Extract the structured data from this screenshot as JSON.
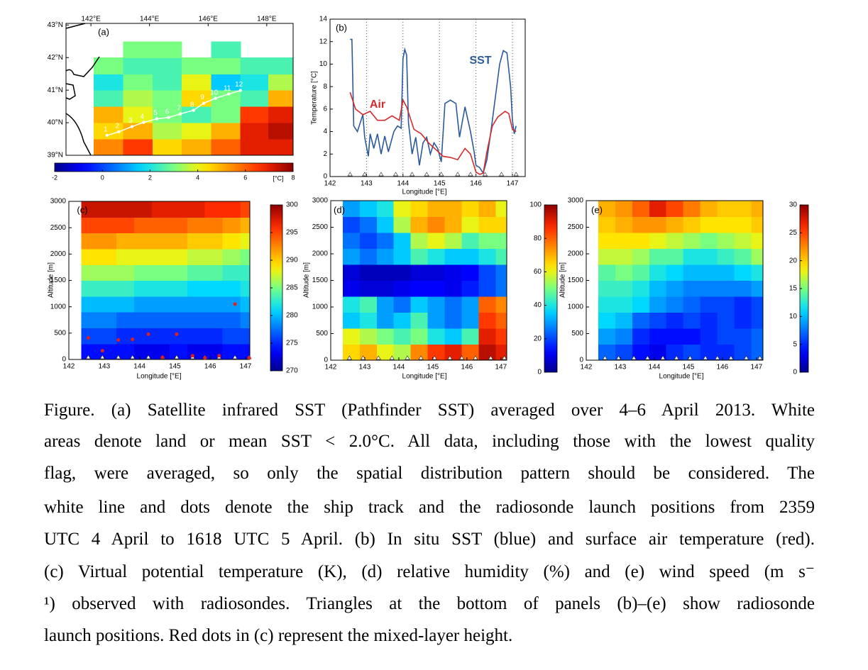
{
  "launch_longitudes": [
    142.55,
    142.95,
    143.4,
    143.8,
    144.25,
    144.65,
    145.05,
    145.5,
    145.85,
    146.25,
    146.7,
    147.1
  ],
  "chart_data": [
    {
      "type": "map",
      "panel_label": "(a)",
      "xlim": [
        141.15,
        148.9
      ],
      "ylim": [
        39,
        43.05
      ],
      "xticks": [
        {
          "value": 142,
          "label": "142°E"
        },
        {
          "value": 144,
          "label": "144°E"
        },
        {
          "value": 146,
          "label": "146°E"
        },
        {
          "value": 148,
          "label": "148°E"
        }
      ],
      "yticks": [
        {
          "value": 39,
          "label": "39°N"
        },
        {
          "value": 40,
          "label": "40°N"
        },
        {
          "value": 41,
          "label": "41°N"
        },
        {
          "value": 42,
          "label": "42°N"
        },
        {
          "value": 43,
          "label": "43°N"
        }
      ],
      "x": [
        141.6,
        142.6,
        143.6,
        144.6,
        145.6,
        146.6,
        147.6,
        148.5
      ],
      "y": [
        39.25,
        39.75,
        40.25,
        40.75,
        41.25,
        41.75,
        42.25,
        42.75
      ],
      "z": [
        [
          null,
          5.5,
          6.5,
          4.5,
          5,
          6,
          7,
          7
        ],
        [
          null,
          4.5,
          5,
          3.5,
          4,
          5,
          7,
          7.5
        ],
        [
          null,
          5,
          4,
          3,
          2.5,
          3,
          6.5,
          7
        ],
        [
          null,
          2.5,
          3.5,
          3,
          4.5,
          3,
          2.5,
          5
        ],
        [
          null,
          2,
          3,
          2.5,
          4,
          1.5,
          2,
          3.5
        ],
        [
          null,
          3,
          2.5,
          2.5,
          3,
          3,
          2.5,
          2.5
        ],
        [
          null,
          null,
          3,
          3,
          null,
          2.5,
          null,
          null
        ],
        [
          null,
          null,
          null,
          null,
          null,
          null,
          null,
          null
        ]
      ],
      "clim": [
        -2,
        8
      ],
      "cticks": [
        -2,
        0,
        2,
        4,
        6,
        8
      ],
      "colorbar_label": "[°C]",
      "track": {
        "lat": [
          39.61,
          39.72,
          39.88,
          40.01,
          40.12,
          40.16,
          40.27,
          40.38,
          40.6,
          40.75,
          40.88,
          40.99
        ],
        "labels": [
          "1",
          "2",
          "3",
          "4",
          "5",
          "6",
          "7",
          "8",
          "9",
          "10",
          "11",
          "12"
        ]
      }
    },
    {
      "type": "line",
      "panel_label": "(b)",
      "xlabel": "Longitude [°E]",
      "ylabel": "Temperature [°C]",
      "xlim": [
        142,
        147.35
      ],
      "ylim": [
        0,
        14
      ],
      "xticks": [
        142,
        143,
        144,
        145,
        146,
        147
      ],
      "yticks": [
        0,
        2,
        4,
        6,
        8,
        10,
        12,
        14
      ],
      "grid": "x",
      "series": [
        {
          "name": "SST",
          "color": "#2a5a9c",
          "x": [
            142.55,
            142.6,
            142.65,
            142.75,
            142.9,
            142.95,
            143.05,
            143.1,
            143.2,
            143.3,
            143.4,
            143.5,
            143.6,
            143.75,
            143.85,
            143.95,
            144.0,
            144.05,
            144.1,
            144.15,
            144.25,
            144.35,
            144.45,
            144.55,
            144.65,
            144.75,
            144.85,
            144.95,
            145.05,
            145.15,
            145.3,
            145.45,
            145.55,
            145.7,
            145.85,
            145.95,
            146.0,
            146.1,
            146.2,
            146.3,
            146.4,
            146.45,
            146.55,
            146.65,
            146.75,
            146.85,
            146.95,
            147.0,
            147.05,
            147.1
          ],
          "values": [
            12.2,
            12.2,
            4.5,
            4.0,
            5.5,
            3.5,
            1.8,
            3.8,
            2.5,
            3.8,
            2.0,
            3.6,
            2.2,
            4.0,
            4.5,
            4.3,
            10.5,
            11.3,
            10.8,
            4.8,
            2.0,
            3.5,
            1.0,
            3.0,
            3.5,
            2.0,
            3.0,
            2.5,
            1.3,
            6.5,
            6.8,
            6.5,
            3.5,
            6.2,
            4.0,
            2.2,
            1.0,
            0.8,
            0.3,
            1.5,
            3.8,
            5.0,
            7.5,
            10.0,
            11.2,
            11.0,
            8.0,
            5.0,
            3.8,
            4.5
          ]
        },
        {
          "name": "Air",
          "color": "#d42a2a",
          "x": [
            142.55,
            142.7,
            142.9,
            143.1,
            143.3,
            143.5,
            143.7,
            143.9,
            144.0,
            144.1,
            144.3,
            144.5,
            144.7,
            144.9,
            145.1,
            145.3,
            145.5,
            145.7,
            145.85,
            146.0,
            146.1,
            146.2,
            146.3,
            146.45,
            146.6,
            146.8,
            146.9,
            147.0,
            147.1
          ],
          "values": [
            7.5,
            6.0,
            5.5,
            5.8,
            5.0,
            5.0,
            5.4,
            5.0,
            6.8,
            6.2,
            4.2,
            3.8,
            3.0,
            2.4,
            1.8,
            1.7,
            1.5,
            2.5,
            2.0,
            0.4,
            0.2,
            0.3,
            2.2,
            4.5,
            5.3,
            5.8,
            5.6,
            4.2,
            4.0
          ]
        }
      ]
    },
    {
      "type": "contour",
      "panel_label": "(c)",
      "xlabel": "Longitude [°E]",
      "ylabel": "Altitude [m]",
      "xlim": [
        142,
        147.12
      ],
      "ylim": [
        0,
        3000
      ],
      "xticks": [
        142,
        143,
        144,
        145,
        146,
        147
      ],
      "yticks": [
        0,
        500,
        1000,
        1500,
        2000,
        2500,
        3000
      ],
      "x": [
        142.6,
        143.1,
        143.6,
        144.1,
        144.6,
        145.1,
        145.6,
        146.1,
        146.6,
        147.1
      ],
      "y": [
        150,
        450,
        750,
        1050,
        1350,
        1650,
        1950,
        2250,
        2550,
        2850
      ],
      "z": [
        [
          274,
          274,
          274,
          273,
          273,
          274,
          273,
          273,
          274,
          274
        ],
        [
          276,
          276,
          275,
          275,
          275,
          275,
          275,
          275,
          276,
          276
        ],
        [
          278,
          278,
          277,
          277,
          277,
          277,
          277,
          277,
          277,
          278
        ],
        [
          280,
          280,
          280,
          279,
          279,
          279,
          279,
          279,
          279,
          280
        ],
        [
          283,
          283,
          283,
          282,
          282,
          282,
          281,
          281,
          281,
          282
        ],
        [
          286,
          286,
          286,
          285,
          285,
          285,
          284,
          284,
          283,
          283
        ],
        [
          289,
          289,
          288,
          288,
          288,
          288,
          287,
          287,
          286,
          285
        ],
        [
          292,
          292,
          291,
          291,
          291,
          291,
          290,
          290,
          289,
          288
        ],
        [
          295,
          295,
          295,
          294,
          294,
          294,
          293,
          293,
          292,
          291
        ],
        [
          298,
          298,
          298,
          298,
          297,
          297,
          297,
          296,
          296,
          295
        ]
      ],
      "clim": [
        270,
        300
      ],
      "cticks": [
        270,
        275,
        280,
        285,
        290,
        295,
        300
      ],
      "mixed_layer_height": [
        410,
        165,
        370,
        380,
        480,
        40,
        480,
        70,
        30,
        70,
        1050,
        30
      ]
    },
    {
      "type": "contour",
      "panel_label": "(d)",
      "xlabel": "Longitude [°E]",
      "ylabel": "Altitude [m]",
      "xlim": [
        142,
        147.17
      ],
      "ylim": [
        0,
        3000
      ],
      "xticks": [
        142,
        143,
        144,
        145,
        146,
        147
      ],
      "yticks": [
        0,
        500,
        1000,
        1500,
        2000,
        2500,
        3000
      ],
      "x": [
        142.6,
        143.1,
        143.6,
        144.1,
        144.6,
        145.1,
        145.6,
        146.1,
        146.6,
        147.1
      ],
      "y": [
        150,
        450,
        750,
        1050,
        1350,
        1650,
        1950,
        2250,
        2550,
        2850
      ],
      "z": [
        [
          65,
          70,
          60,
          55,
          75,
          85,
          90,
          80,
          95,
          90
        ],
        [
          60,
          55,
          50,
          45,
          50,
          40,
          35,
          45,
          90,
          85
        ],
        [
          35,
          40,
          30,
          35,
          45,
          30,
          25,
          30,
          85,
          80
        ],
        [
          40,
          45,
          30,
          25,
          35,
          30,
          25,
          30,
          80,
          75
        ],
        [
          10,
          8,
          8,
          10,
          12,
          12,
          10,
          15,
          20,
          25
        ],
        [
          8,
          5,
          5,
          5,
          8,
          8,
          10,
          12,
          20,
          25
        ],
        [
          30,
          25,
          30,
          35,
          45,
          40,
          35,
          35,
          40,
          45
        ],
        [
          25,
          20,
          25,
          35,
          55,
          60,
          55,
          45,
          50,
          50
        ],
        [
          20,
          25,
          35,
          55,
          70,
          75,
          70,
          60,
          65,
          65
        ],
        [
          30,
          35,
          40,
          60,
          65,
          70,
          70,
          65,
          70,
          60
        ]
      ],
      "clim": [
        0,
        100
      ],
      "cticks": [
        0,
        20,
        40,
        60,
        80,
        100
      ]
    },
    {
      "type": "contour",
      "panel_label": "(e)",
      "xlabel": "Longitude [°E]",
      "ylabel": "Altitude [m]",
      "xlim": [
        142,
        147.19
      ],
      "ylim": [
        0,
        3000
      ],
      "xticks": [
        142,
        143,
        144,
        145,
        146,
        147
      ],
      "yticks": [
        0,
        500,
        1000,
        1500,
        2000,
        2500,
        3000
      ],
      "x": [
        142.6,
        143.1,
        143.6,
        144.1,
        144.6,
        145.1,
        145.6,
        146.1,
        146.6,
        147.1
      ],
      "y": [
        150,
        450,
        750,
        1050,
        1350,
        1650,
        1950,
        2250,
        2550,
        2850
      ],
      "z": [
        [
          7,
          6,
          4,
          3,
          5,
          6,
          5,
          5,
          6,
          7
        ],
        [
          9,
          8,
          5,
          4,
          4,
          4,
          5,
          6,
          6,
          7
        ],
        [
          11,
          10,
          7,
          6,
          5,
          6,
          5,
          6,
          5,
          6
        ],
        [
          12,
          12,
          11,
          9,
          8,
          7,
          6,
          6,
          5,
          6
        ],
        [
          13,
          13,
          12,
          10,
          9,
          8,
          8,
          8,
          8,
          9
        ],
        [
          14,
          15,
          14,
          12,
          11,
          10,
          10,
          10,
          11,
          12
        ],
        [
          17,
          17,
          16,
          14,
          14,
          12,
          12,
          13,
          14,
          16
        ],
        [
          19,
          19,
          19,
          18,
          17,
          16,
          15,
          16,
          17,
          18
        ],
        [
          20,
          21,
          22,
          22,
          21,
          20,
          19,
          19,
          19,
          20
        ],
        [
          21,
          22,
          24,
          27,
          25,
          23,
          21,
          20,
          20,
          21
        ]
      ],
      "clim": [
        0,
        30
      ],
      "cticks": [
        0,
        5,
        10,
        15,
        20,
        25,
        30
      ]
    }
  ],
  "caption": {
    "lines": [
      "Figure. (a) Satellite infrared SST (Pathfinder SST) averaged over 4–6 April 2013. White",
      "areas denote land or mean SST < 2.0°C. All data, including those with the lowest quality",
      "flag, were averaged, so only the spatial distribution pattern should be considered. The",
      "white line and dots denote the ship track and the radiosonde launch positions from 2359",
      "UTC 4 April to 1618 UTC 5 April. (b) In situ SST (blue) and surface air temperature (red).",
      "(c) Virtual potential temperature (K), (d) relative humidity (%) and (e) wind speed (m s⁻",
      "¹) observed with radiosondes. Triangles at the bottom of panels (b)–(e) show radiosonde",
      "launch positions. Red dots in (c) represent the mixed-layer height."
    ]
  }
}
